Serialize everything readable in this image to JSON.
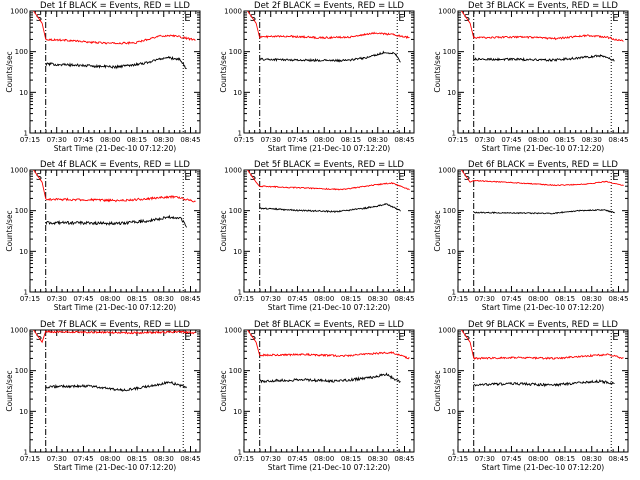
{
  "figure": {
    "background": "#ffffff",
    "axis_color": "#000000"
  },
  "chart_data": [
    {
      "type": "line",
      "title": "Det 1f BLACK = Events, RED = LLD",
      "xlabel": "Start Time (21-Dec-10 07:12:20)",
      "ylabel": "Counts/sec",
      "yscale": "log",
      "ylim": [
        1,
        1000
      ],
      "xlim_minutes_after_start": [
        2.7,
        98
      ],
      "x_ticks": [
        "07:15",
        "07:30",
        "07:45",
        "08:00",
        "08:15",
        "08:30",
        "08:45"
      ],
      "y_ticks": [
        "1",
        "10",
        "100",
        "1000"
      ],
      "markers": {
        "start": {
          "label": "S",
          "x_minutes": 11.5
        },
        "end": {
          "label": "E",
          "x_minutes": 88.6
        }
      },
      "series": [
        {
          "color": "#ff0000",
          "start_minutes": 11.5,
          "end_minutes": 95.5,
          "spike_minutes": 3.5,
          "knots": [
            [
              0,
              200
            ],
            [
              0.15,
              190
            ],
            [
              0.3,
              170
            ],
            [
              0.45,
              160
            ],
            [
              0.6,
              165
            ],
            [
              0.75,
              240
            ],
            [
              0.85,
              250
            ],
            [
              0.95,
              210
            ],
            [
              1,
              190
            ]
          ],
          "noise": 0.05
        },
        {
          "color": "#000000",
          "start_minutes": 11.5,
          "end_minutes": 90.5,
          "knots": [
            [
              0,
              50
            ],
            [
              0.3,
              45
            ],
            [
              0.5,
              42
            ],
            [
              0.7,
              52
            ],
            [
              0.85,
              72
            ],
            [
              0.95,
              65
            ],
            [
              1,
              38
            ]
          ],
          "noise": 0.07
        }
      ]
    },
    {
      "type": "line",
      "title": "Det 2f BLACK = Events, RED = LLD",
      "xlabel": "Start Time (21-Dec-10 07:12:20)",
      "ylabel": "Counts/sec",
      "yscale": "log",
      "ylim": [
        1,
        1000
      ],
      "xlim_minutes_after_start": [
        2.7,
        98
      ],
      "x_ticks": [
        "07:15",
        "07:30",
        "07:45",
        "08:00",
        "08:15",
        "08:30",
        "08:45"
      ],
      "y_ticks": [
        "1",
        "10",
        "100",
        "1000"
      ],
      "markers": {
        "start": {
          "label": "S",
          "x_minutes": 11.5
        },
        "end": {
          "label": "E",
          "x_minutes": 88.6
        }
      },
      "series": [
        {
          "color": "#ff0000",
          "start_minutes": 11.5,
          "end_minutes": 95.5,
          "spike_minutes": 3.5,
          "knots": [
            [
              0,
              230
            ],
            [
              0.2,
              240
            ],
            [
              0.4,
              220
            ],
            [
              0.6,
              230
            ],
            [
              0.78,
              290
            ],
            [
              0.9,
              260
            ],
            [
              1,
              220
            ]
          ],
          "noise": 0.05
        },
        {
          "color": "#000000",
          "start_minutes": 11.5,
          "end_minutes": 90.5,
          "knots": [
            [
              0,
              65
            ],
            [
              0.3,
              62
            ],
            [
              0.6,
              60
            ],
            [
              0.75,
              70
            ],
            [
              0.88,
              95
            ],
            [
              0.96,
              90
            ],
            [
              1,
              55
            ]
          ],
          "noise": 0.06
        }
      ]
    },
    {
      "type": "line",
      "title": "Det 3f BLACK = Events, RED = LLD",
      "xlabel": "Start Time (21-Dec-10 07:12:20)",
      "ylabel": "Counts/sec",
      "yscale": "log",
      "ylim": [
        1,
        1000
      ],
      "xlim_minutes_after_start": [
        2.7,
        98
      ],
      "x_ticks": [
        "07:15",
        "07:30",
        "07:45",
        "08:00",
        "08:15",
        "08:30",
        "08:45"
      ],
      "y_ticks": [
        "1",
        "10",
        "100",
        "1000"
      ],
      "markers": {
        "start": {
          "label": "S",
          "x_minutes": 11.5
        },
        "end": {
          "label": "E",
          "x_minutes": 88.6
        }
      },
      "series": [
        {
          "color": "#ff0000",
          "start_minutes": 11.5,
          "end_minutes": 95.5,
          "spike_minutes": 3.5,
          "knots": [
            [
              0,
              220
            ],
            [
              0.3,
              230
            ],
            [
              0.55,
              210
            ],
            [
              0.75,
              250
            ],
            [
              0.88,
              230
            ],
            [
              1,
              180
            ]
          ],
          "noise": 0.05
        },
        {
          "color": "#000000",
          "start_minutes": 11.5,
          "end_minutes": 90.5,
          "knots": [
            [
              0,
              65
            ],
            [
              0.3,
              65
            ],
            [
              0.55,
              62
            ],
            [
              0.75,
              70
            ],
            [
              0.9,
              80
            ],
            [
              1,
              60
            ]
          ],
          "noise": 0.06
        }
      ]
    },
    {
      "type": "line",
      "title": "Det 4f BLACK = Events, RED = LLD",
      "xlabel": "Start Time (21-Dec-10 07:12:20)",
      "ylabel": "Counts/sec",
      "yscale": "log",
      "ylim": [
        1,
        1000
      ],
      "xlim_minutes_after_start": [
        2.7,
        98
      ],
      "x_ticks": [
        "07:15",
        "07:30",
        "07:45",
        "08:00",
        "08:15",
        "08:30",
        "08:45"
      ],
      "y_ticks": [
        "1",
        "10",
        "100",
        "1000"
      ],
      "markers": {
        "start": {
          "label": "S",
          "x_minutes": 11.5
        },
        "end": {
          "label": "E",
          "x_minutes": 88.6
        }
      },
      "series": [
        {
          "color": "#ff0000",
          "start_minutes": 11.5,
          "end_minutes": 95.5,
          "spike_minutes": 3.5,
          "knots": [
            [
              0,
              190
            ],
            [
              0.3,
              185
            ],
            [
              0.5,
              175
            ],
            [
              0.7,
              200
            ],
            [
              0.85,
              220
            ],
            [
              1,
              170
            ]
          ],
          "noise": 0.06
        },
        {
          "color": "#000000",
          "start_minutes": 11.5,
          "end_minutes": 90.5,
          "knots": [
            [
              0,
              50
            ],
            [
              0.3,
              50
            ],
            [
              0.5,
              48
            ],
            [
              0.7,
              55
            ],
            [
              0.88,
              70
            ],
            [
              0.96,
              65
            ],
            [
              1,
              40
            ]
          ],
          "noise": 0.08
        }
      ]
    },
    {
      "type": "line",
      "title": "Det 5f BLACK = Events, RED = LLD",
      "xlabel": "Start Time (21-Dec-10 07:12:20)",
      "ylabel": "Counts/sec",
      "yscale": "log",
      "ylim": [
        1,
        1000
      ],
      "xlim_minutes_after_start": [
        2.7,
        98
      ],
      "x_ticks": [
        "07:15",
        "07:30",
        "07:45",
        "08:00",
        "08:15",
        "08:30",
        "08:45"
      ],
      "y_ticks": [
        "1",
        "10",
        "100",
        "1000"
      ],
      "markers": {
        "start": {
          "label": "S",
          "x_minutes": 11.5
        },
        "end": {
          "label": "E",
          "x_minutes": 88.6
        }
      },
      "series": [
        {
          "color": "#ff0000",
          "start_minutes": 11.5,
          "end_minutes": 95.5,
          "spike_minutes": 3.5,
          "knots": [
            [
              0,
              400
            ],
            [
              0.3,
              360
            ],
            [
              0.55,
              330
            ],
            [
              0.75,
              420
            ],
            [
              0.88,
              480
            ],
            [
              1,
              330
            ]
          ],
          "noise": 0.03
        },
        {
          "color": "#000000",
          "start_minutes": 11.5,
          "end_minutes": 90.5,
          "knots": [
            [
              0,
              115
            ],
            [
              0.3,
              100
            ],
            [
              0.55,
              95
            ],
            [
              0.75,
              115
            ],
            [
              0.9,
              145
            ],
            [
              1,
              100
            ]
          ],
          "noise": 0.04
        }
      ]
    },
    {
      "type": "line",
      "title": "Det 6f BLACK = Events, RED = LLD",
      "xlabel": "Start Time (21-Dec-10 07:12:20)",
      "ylabel": "Counts/sec",
      "yscale": "log",
      "ylim": [
        1,
        1000
      ],
      "xlim_minutes_after_start": [
        2.7,
        98
      ],
      "x_ticks": [
        "07:15",
        "07:30",
        "07:45",
        "08:00",
        "08:15",
        "08:30",
        "08:45"
      ],
      "y_ticks": [
        "1",
        "10",
        "100",
        "1000"
      ],
      "markers": {
        "start": {
          "label": "S",
          "x_minutes": 11.5
        },
        "end": {
          "label": "E",
          "x_minutes": 88.6
        }
      },
      "series": [
        {
          "color": "#ff0000",
          "start_minutes": 11.5,
          "end_minutes": 95.5,
          "spike_minutes": 3.5,
          "knots": [
            [
              0,
              550
            ],
            [
              0.3,
              480
            ],
            [
              0.55,
              420
            ],
            [
              0.75,
              450
            ],
            [
              0.88,
              520
            ],
            [
              1,
              420
            ]
          ],
          "noise": 0.025
        },
        {
          "color": "#000000",
          "start_minutes": 11.5,
          "end_minutes": 90.5,
          "knots": [
            [
              0,
              90
            ],
            [
              0.3,
              88
            ],
            [
              0.55,
              85
            ],
            [
              0.75,
              100
            ],
            [
              0.92,
              105
            ],
            [
              1,
              90
            ]
          ],
          "noise": 0.03
        }
      ]
    },
    {
      "type": "line",
      "title": "Det 7f BLACK = Events, RED = LLD",
      "xlabel": "Start Time (21-Dec-10 07:12:20)",
      "ylabel": "Counts/sec",
      "yscale": "log",
      "ylim": [
        1,
        1000
      ],
      "xlim_minutes_after_start": [
        2.7,
        98
      ],
      "x_ticks": [
        "07:15",
        "07:30",
        "07:45",
        "08:00",
        "08:15",
        "08:30",
        "08:45"
      ],
      "y_ticks": [
        "1",
        "10",
        "100",
        "1000"
      ],
      "markers": {
        "start": {
          "label": "S",
          "x_minutes": 11.5
        },
        "end": {
          "label": "E",
          "x_minutes": 88.6
        }
      },
      "series": [
        {
          "color": "#ff0000",
          "start_minutes": 11.5,
          "end_minutes": 95.5,
          "spike_minutes": 3.5,
          "knots": [
            [
              0,
              900
            ],
            [
              0.3,
              880
            ],
            [
              0.55,
              850
            ],
            [
              0.75,
              870
            ],
            [
              0.9,
              900
            ],
            [
              1,
              850
            ]
          ],
          "noise": 0.05
        },
        {
          "color": "#000000",
          "start_minutes": 11.5,
          "end_minutes": 90.5,
          "knots": [
            [
              0,
              40
            ],
            [
              0.3,
              42
            ],
            [
              0.55,
              33
            ],
            [
              0.75,
              42
            ],
            [
              0.88,
              52
            ],
            [
              1,
              38
            ]
          ],
          "noise": 0.07
        }
      ]
    },
    {
      "type": "line",
      "title": "Det 8f BLACK = Events, RED = LLD",
      "xlabel": "Start Time (21-Dec-10 07:12:20)",
      "ylabel": "Counts/sec",
      "yscale": "log",
      "ylim": [
        1,
        1000
      ],
      "xlim_minutes_after_start": [
        2.7,
        98
      ],
      "x_ticks": [
        "07:15",
        "07:30",
        "07:45",
        "08:00",
        "08:15",
        "08:30",
        "08:45"
      ],
      "y_ticks": [
        "1",
        "10",
        "100",
        "1000"
      ],
      "markers": {
        "start": {
          "label": "S",
          "x_minutes": 11.5
        },
        "end": {
          "label": "E",
          "x_minutes": 88.6
        }
      },
      "series": [
        {
          "color": "#ff0000",
          "start_minutes": 11.5,
          "end_minutes": 95.5,
          "spike_minutes": 3.5,
          "knots": [
            [
              0,
              240
            ],
            [
              0.3,
              250
            ],
            [
              0.55,
              230
            ],
            [
              0.75,
              260
            ],
            [
              0.88,
              280
            ],
            [
              1,
              200
            ]
          ],
          "noise": 0.05
        },
        {
          "color": "#000000",
          "start_minutes": 11.5,
          "end_minutes": 90.5,
          "knots": [
            [
              0,
              55
            ],
            [
              0.3,
              60
            ],
            [
              0.55,
              55
            ],
            [
              0.75,
              65
            ],
            [
              0.9,
              80
            ],
            [
              1,
              52
            ]
          ],
          "noise": 0.07
        }
      ]
    },
    {
      "type": "line",
      "title": "Det 9f BLACK = Events, RED = LLD",
      "xlabel": "Start Time (21-Dec-10 07:12:20)",
      "ylabel": "Counts/sec",
      "yscale": "log",
      "ylim": [
        1,
        1000
      ],
      "xlim_minutes_after_start": [
        2.7,
        98
      ],
      "x_ticks": [
        "07:15",
        "07:30",
        "07:45",
        "08:00",
        "08:15",
        "08:30",
        "08:45"
      ],
      "y_ticks": [
        "1",
        "10",
        "100",
        "1000"
      ],
      "markers": {
        "start": {
          "label": "S",
          "x_minutes": 11.5
        },
        "end": {
          "label": "E",
          "x_minutes": 88.6
        }
      },
      "series": [
        {
          "color": "#ff0000",
          "start_minutes": 11.5,
          "end_minutes": 95.5,
          "spike_minutes": 3.5,
          "knots": [
            [
              0,
              200
            ],
            [
              0.3,
              210
            ],
            [
              0.55,
              200
            ],
            [
              0.75,
              230
            ],
            [
              0.9,
              250
            ],
            [
              1,
              200
            ]
          ],
          "noise": 0.05
        },
        {
          "color": "#000000",
          "start_minutes": 11.5,
          "end_minutes": 90.5,
          "knots": [
            [
              0,
              45
            ],
            [
              0.3,
              48
            ],
            [
              0.55,
              44
            ],
            [
              0.75,
              50
            ],
            [
              0.9,
              55
            ],
            [
              1,
              48
            ]
          ],
          "noise": 0.07
        }
      ]
    }
  ]
}
